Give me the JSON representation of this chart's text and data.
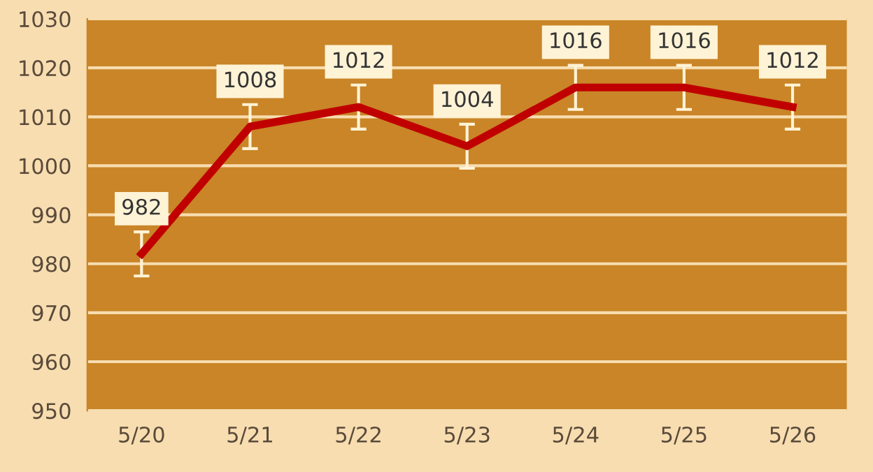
{
  "chart_data": {
    "type": "line",
    "categories": [
      "5/20",
      "5/21",
      "5/22",
      "5/23",
      "5/24",
      "5/25",
      "5/26"
    ],
    "series": [
      {
        "color": "#c00000",
        "values": [
          982,
          1008,
          1012,
          1004,
          1016,
          1016,
          1012
        ],
        "errors": [
          4.5,
          4.5,
          4.5,
          4.5,
          4.5,
          4.5,
          4.5
        ]
      }
    ],
    "ylim": [
      950,
      1030
    ],
    "yticks": [
      950,
      960,
      970,
      980,
      990,
      1000,
      1010,
      1020,
      1030
    ],
    "grid": "y",
    "data_labels": true,
    "marker": "none",
    "line_style": "solid"
  }
}
